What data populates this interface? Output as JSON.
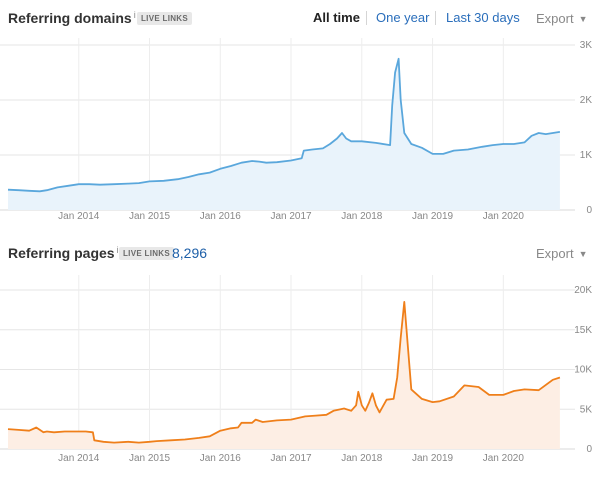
{
  "panels": [
    {
      "title": "Referring domains",
      "info_mark": "i",
      "badge": "LIVE LINKS",
      "count": "",
      "export_label": "Export",
      "color": "#5aa7dc",
      "fill": "#e9f3fb",
      "chart_data": {
        "type": "area",
        "title": "Referring domains",
        "xlabel": "",
        "ylabel": "",
        "x_ticks": [
          "Jan 2014",
          "Jan 2015",
          "Jan 2016",
          "Jan 2017",
          "Jan 2018",
          "Jan 2019",
          "Jan 2020"
        ],
        "y_ticks": [
          "0",
          "1K",
          "2K",
          "3K"
        ],
        "ylim": [
          0,
          3000
        ],
        "grid": true,
        "series": [
          {
            "name": "",
            "x": [
              2013.0,
              2013.15,
              2013.3,
              2013.45,
              2013.55,
              2013.7,
              2013.85,
              2014.0,
              2014.15,
              2014.3,
              2014.5,
              2014.7,
              2014.85,
              2015.0,
              2015.2,
              2015.4,
              2015.55,
              2015.7,
              2015.85,
              2016.0,
              2016.15,
              2016.3,
              2016.45,
              2016.55,
              2016.65,
              2016.8,
              2017.0,
              2017.15,
              2017.18,
              2017.3,
              2017.45,
              2017.55,
              2017.65,
              2017.72,
              2017.78,
              2017.85,
              2018.0,
              2018.2,
              2018.4,
              2018.43,
              2018.47,
              2018.52,
              2018.55,
              2018.6,
              2018.7,
              2018.85,
              2019.0,
              2019.15,
              2019.3,
              2019.5,
              2019.7,
              2019.85,
              2020.0,
              2020.15,
              2020.3,
              2020.4,
              2020.5,
              2020.6,
              2020.8
            ],
            "y": [
              370,
              360,
              350,
              340,
              360,
              410,
              440,
              470,
              470,
              460,
              470,
              480,
              490,
              520,
              530,
              560,
              600,
              650,
              680,
              750,
              800,
              860,
              890,
              880,
              860,
              870,
              900,
              940,
              1080,
              1100,
              1120,
              1200,
              1300,
              1400,
              1300,
              1250,
              1250,
              1220,
              1180,
              1900,
              2500,
              2750,
              2000,
              1400,
              1200,
              1130,
              1020,
              1020,
              1080,
              1100,
              1150,
              1180,
              1200,
              1200,
              1230,
              1350,
              1400,
              1380,
              1420
            ]
          }
        ]
      }
    },
    {
      "title": "Referring pages",
      "info_mark": "i",
      "badge": "LIVE LINKS",
      "count": "8,296",
      "export_label": "Export",
      "color": "#ef7f1a",
      "fill": "#fdeee4",
      "chart_data": {
        "type": "area",
        "title": "Referring pages",
        "xlabel": "",
        "ylabel": "",
        "x_ticks": [
          "Jan 2014",
          "Jan 2015",
          "Jan 2016",
          "Jan 2017",
          "Jan 2018",
          "Jan 2019",
          "Jan 2020"
        ],
        "y_ticks": [
          "0",
          "5K",
          "10K",
          "15K",
          "20K"
        ],
        "ylim": [
          0,
          20000
        ],
        "grid": true,
        "series": [
          {
            "name": "",
            "x": [
              2013.0,
              2013.15,
              2013.3,
              2013.4,
              2013.5,
              2013.55,
              2013.65,
              2013.8,
              2013.95,
              2014.1,
              2014.2,
              2014.22,
              2014.35,
              2014.5,
              2014.7,
              2014.85,
              2015.0,
              2015.1,
              2015.3,
              2015.5,
              2015.7,
              2015.85,
              2016.0,
              2016.15,
              2016.25,
              2016.3,
              2016.45,
              2016.5,
              2016.6,
              2016.8,
              2017.0,
              2017.2,
              2017.35,
              2017.5,
              2017.6,
              2017.75,
              2017.85,
              2017.92,
              2017.95,
              2018.0,
              2018.05,
              2018.1,
              2018.15,
              2018.2,
              2018.25,
              2018.35,
              2018.45,
              2018.5,
              2018.55,
              2018.6,
              2018.7,
              2018.85,
              2019.0,
              2019.1,
              2019.3,
              2019.45,
              2019.65,
              2019.8,
              2020.0,
              2020.15,
              2020.3,
              2020.5,
              2020.7,
              2020.8
            ],
            "y": [
              2500,
              2400,
              2300,
              2700,
              2100,
              2200,
              2100,
              2200,
              2200,
              2200,
              2100,
              1100,
              900,
              800,
              900,
              800,
              900,
              1000,
              1100,
              1200,
              1400,
              1600,
              2300,
              2600,
              2700,
              3300,
              3300,
              3700,
              3400,
              3600,
              3700,
              4100,
              4200,
              4300,
              4800,
              5100,
              4800,
              5500,
              7200,
              5500,
              4800,
              5800,
              7000,
              5500,
              4600,
              6200,
              6300,
              9000,
              14000,
              18500,
              7500,
              6300,
              5900,
              6000,
              6600,
              8000,
              7800,
              6800,
              6800,
              7300,
              7500,
              7400,
              8700,
              9000
            ]
          }
        ]
      }
    }
  ],
  "time_tabs": [
    {
      "label": "All time",
      "active": true
    },
    {
      "label": "One year",
      "active": false
    },
    {
      "label": "Last 30 days",
      "active": false
    }
  ]
}
